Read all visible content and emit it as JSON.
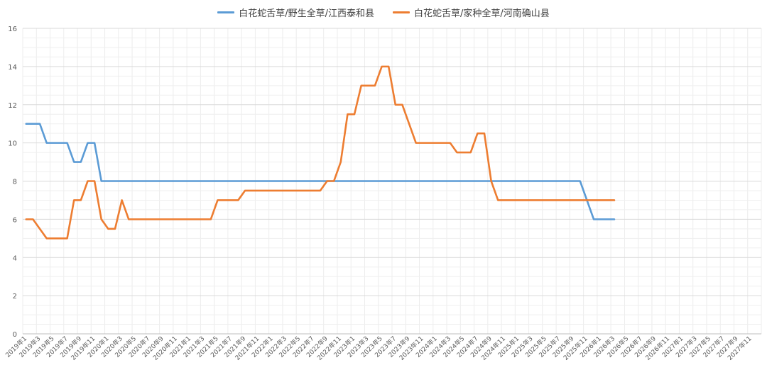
{
  "chart_data": {
    "type": "line",
    "title": "",
    "xlabel": "",
    "ylabel": "",
    "ylim": [
      0,
      16
    ],
    "yticks": [
      0,
      2,
      4,
      6,
      8,
      10,
      12,
      14,
      16
    ],
    "legend_position": "top-center",
    "grid": true,
    "tick_labels": [
      "2019年1",
      "2019年3",
      "2019年5",
      "2019年7",
      "2019年9",
      "2019年11",
      "2020年1",
      "2020年3",
      "2020年5",
      "2020年7",
      "2020年9",
      "2020年11",
      "2021年1",
      "2021年3",
      "2021年5",
      "2021年7",
      "2021年9",
      "2021年11",
      "2022年1",
      "2022年3",
      "2022年5",
      "2022年7",
      "2022年9",
      "2022年11",
      "2023年1",
      "2023年3",
      "2023年5",
      "2023年7",
      "2023年9",
      "2023年11",
      "2024年1",
      "2024年3",
      "2024年5",
      "2024年7",
      "2024年9",
      "2024年11",
      "2025年1",
      "2025年3",
      "2025年5",
      "2025年7",
      "2025年9",
      "2025年11",
      "2026年1",
      "2026年3",
      "2026年5",
      "2026年7",
      "2026年9",
      "2026年11",
      "2027年1",
      "2027年3",
      "2027年5",
      "2027年7",
      "2027年9",
      "2027年11"
    ],
    "series": [
      {
        "name": "白花蛇舌草/野生全草/江西泰和县",
        "color": "#5b9bd5",
        "values": [
          11,
          11,
          11,
          10,
          10,
          10,
          10,
          9,
          9,
          10,
          10,
          8,
          8,
          8,
          8,
          8,
          8,
          8,
          8,
          8,
          8,
          8,
          8,
          8,
          8,
          8,
          8,
          8,
          8,
          8,
          8,
          8,
          8,
          8,
          8,
          8,
          8,
          8,
          8,
          8,
          8,
          8,
          8,
          8,
          8,
          8,
          8,
          8,
          8,
          8,
          8,
          8,
          8,
          8,
          8,
          8,
          8,
          8,
          8,
          8,
          8,
          8,
          8,
          8,
          8,
          8,
          8,
          8,
          8,
          8,
          8,
          8,
          8,
          8,
          8,
          8,
          8,
          8,
          8,
          8,
          8,
          8,
          7,
          6,
          6,
          6,
          6
        ]
      },
      {
        "name": "白花蛇舌草/家种全草/河南确山县",
        "color": "#ed7d31",
        "values": [
          6,
          6,
          5.5,
          5,
          5,
          5,
          5,
          7,
          7,
          8,
          8,
          6,
          5.5,
          5.5,
          7,
          6,
          6,
          6,
          6,
          6,
          6,
          6,
          6,
          6,
          6,
          6,
          6,
          6,
          7,
          7,
          7,
          7,
          7.5,
          7.5,
          7.5,
          7.5,
          7.5,
          7.5,
          7.5,
          7.5,
          7.5,
          7.5,
          7.5,
          7.5,
          8,
          8,
          9,
          11.5,
          11.5,
          13,
          13,
          13,
          14,
          14,
          12,
          12,
          11,
          10,
          10,
          10,
          10,
          10,
          10,
          9.5,
          9.5,
          9.5,
          10.5,
          10.5,
          8,
          7,
          7,
          7,
          7,
          7,
          7,
          7,
          7,
          7,
          7,
          7,
          7,
          7,
          7,
          7,
          7,
          7,
          7
        ]
      }
    ]
  }
}
